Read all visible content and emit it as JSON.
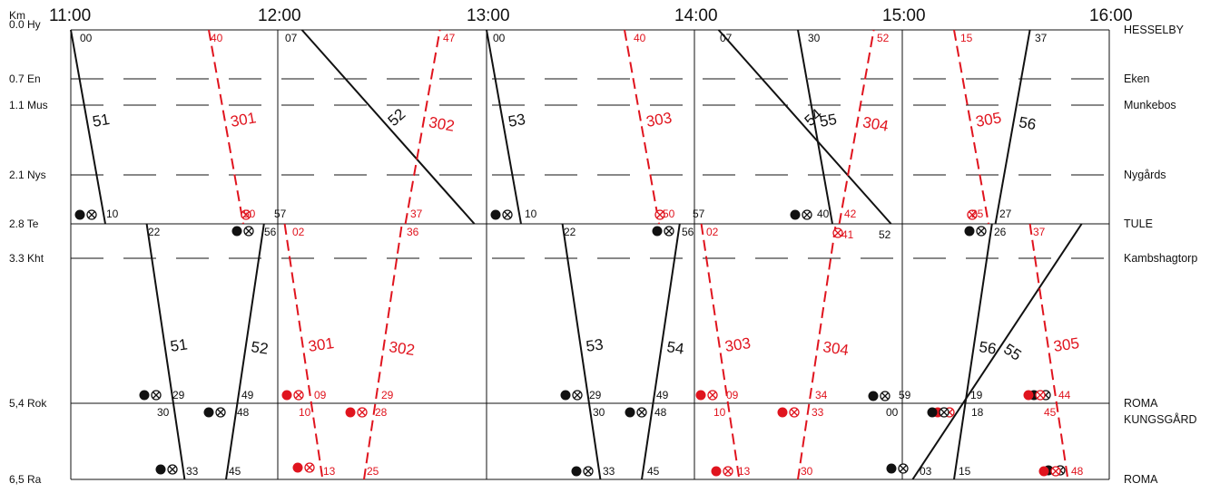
{
  "diagram": {
    "km_unit": "Km",
    "hours": [
      "11:00",
      "12:00",
      "13:00",
      "14:00",
      "15:00",
      "16:00"
    ],
    "stations": [
      {
        "km": "0.0 Hy",
        "name": "HESSELBY",
        "dash": false
      },
      {
        "km": "0.7 En",
        "name": "Eken",
        "dash": true
      },
      {
        "km": "1.1 Mus",
        "name": "Munkebos",
        "dash": true
      },
      {
        "km": "2.1 Nys",
        "name": "Nygårds",
        "dash": true
      },
      {
        "km": "2.8 Te",
        "name": "TULE",
        "dash": false
      },
      {
        "km": "3.3 Kht",
        "name": "Kambshagtorp",
        "dash": true
      },
      {
        "km": "5,4 Rok",
        "name": "ROMA",
        "name2": "KUNGSGÅRD",
        "dash": false
      },
      {
        "km": "6,5 Ra",
        "name": "ROMA",
        "dash": false
      }
    ],
    "colors": {
      "freight": "#111111",
      "passenger": "#e0141e"
    },
    "trains": [
      {
        "n": "51",
        "c": "k",
        "s": [
          [
            0,
            0.0,
            10,
            2.8
          ],
          [
            0,
            22,
            0,
            33,
            6.5
          ]
        ]
      },
      {
        "n": "52",
        "c": "k",
        "s": [
          [
            0,
            45,
            0,
            56,
            2.8
          ],
          [
            1,
            57,
            1,
            7,
            0.0
          ]
        ]
      },
      {
        "n": "53",
        "c": "k",
        "s": [
          [
            2,
            0,
            2,
            10,
            2.8
          ],
          [
            2,
            22,
            2,
            33,
            6.5
          ]
        ]
      },
      {
        "n": "54",
        "c": "k",
        "s": [
          [
            2,
            45,
            2,
            56,
            2.8
          ],
          [
            3,
            57,
            3,
            7,
            0.0
          ]
        ]
      },
      {
        "n": "55",
        "c": "k",
        "s": [
          [
            3,
            30,
            3,
            40,
            2.8
          ],
          [
            4,
            52,
            4,
            3,
            6.5
          ]
        ]
      },
      {
        "n": "56",
        "c": "k",
        "s": [
          [
            4,
            15,
            4,
            26,
            2.8
          ],
          [
            4,
            27,
            4,
            37,
            0.0
          ]
        ]
      },
      {
        "n": "301",
        "c": "r",
        "s": [
          [
            0,
            40,
            0,
            50,
            2.8
          ],
          [
            1,
            2,
            1,
            13,
            6.5
          ]
        ]
      },
      {
        "n": "302",
        "c": "r",
        "s": [
          [
            1,
            25,
            1,
            36,
            2.8
          ],
          [
            1,
            37,
            1,
            47,
            0.0
          ]
        ]
      },
      {
        "n": "303",
        "c": "r",
        "s": [
          [
            2,
            40,
            2,
            50,
            2.8
          ],
          [
            3,
            2,
            3,
            13,
            6.5
          ]
        ]
      },
      {
        "n": "304",
        "c": "r",
        "s": [
          [
            3,
            30,
            3,
            41,
            2.8
          ],
          [
            3,
            42,
            3,
            52,
            0.0
          ]
        ]
      },
      {
        "n": "305",
        "c": "r",
        "s": [
          [
            4,
            15,
            4,
            25,
            2.8
          ],
          [
            4,
            37,
            4,
            48,
            6.5
          ]
        ]
      }
    ],
    "time_labels": [
      {
        "t": "00",
        "c": "k"
      },
      {
        "t": "40",
        "c": "r"
      },
      {
        "t": "07",
        "c": "k"
      },
      {
        "t": "47",
        "c": "r"
      },
      {
        "t": "00",
        "c": "k"
      },
      {
        "t": "40",
        "c": "r"
      },
      {
        "t": "07",
        "c": "k"
      },
      {
        "t": "30",
        "c": "k"
      },
      {
        "t": "52",
        "c": "r"
      },
      {
        "t": "15",
        "c": "r"
      },
      {
        "t": "37",
        "c": "k"
      },
      {
        "t": "10",
        "c": "k"
      },
      {
        "t": "50",
        "c": "r"
      },
      {
        "t": "57",
        "c": "k"
      },
      {
        "t": "37",
        "c": "r"
      },
      {
        "t": "10",
        "c": "k"
      },
      {
        "t": "50",
        "c": "r"
      },
      {
        "t": "57",
        "c": "k"
      },
      {
        "t": "40",
        "c": "k"
      },
      {
        "t": "42",
        "c": "r"
      },
      {
        "t": "25",
        "c": "r"
      },
      {
        "t": "27",
        "c": "k"
      },
      {
        "t": "22",
        "c": "k"
      },
      {
        "t": "56",
        "c": "k"
      },
      {
        "t": "02",
        "c": "r"
      },
      {
        "t": "36",
        "c": "r"
      },
      {
        "t": "22",
        "c": "k"
      },
      {
        "t": "56",
        "c": "k"
      },
      {
        "t": "02",
        "c": "r"
      },
      {
        "t": "41",
        "c": "r"
      },
      {
        "t": "52",
        "c": "k"
      },
      {
        "t": "26",
        "c": "k"
      },
      {
        "t": "37",
        "c": "r"
      },
      {
        "t": "29",
        "c": "k"
      },
      {
        "t": "49",
        "c": "k"
      },
      {
        "t": "09",
        "c": "r"
      },
      {
        "t": "29",
        "c": "r"
      },
      {
        "t": "29",
        "c": "k"
      },
      {
        "t": "49",
        "c": "k"
      },
      {
        "t": "09",
        "c": "r"
      },
      {
        "t": "34",
        "c": "r"
      },
      {
        "t": "59",
        "c": "k"
      },
      {
        "t": "19",
        "c": "k"
      },
      {
        "t": "44",
        "c": "r"
      },
      {
        "t": "30",
        "c": "k"
      },
      {
        "t": "48",
        "c": "k"
      },
      {
        "t": "10",
        "c": "r"
      },
      {
        "t": "28",
        "c": "r"
      },
      {
        "t": "30",
        "c": "k"
      },
      {
        "t": "48",
        "c": "k"
      },
      {
        "t": "10",
        "c": "r"
      },
      {
        "t": "33",
        "c": "r"
      },
      {
        "t": "00",
        "c": "k"
      },
      {
        "t": "18",
        "c": "k"
      },
      {
        "t": "45",
        "c": "r"
      },
      {
        "t": "33",
        "c": "k"
      },
      {
        "t": "45",
        "c": "k"
      },
      {
        "t": "13",
        "c": "r"
      },
      {
        "t": "25",
        "c": "r"
      },
      {
        "t": "33",
        "c": "k"
      },
      {
        "t": "45",
        "c": "k"
      },
      {
        "t": "13",
        "c": "r"
      },
      {
        "t": "30",
        "c": "r"
      },
      {
        "t": "03",
        "c": "k"
      },
      {
        "t": "15",
        "c": "k"
      },
      {
        "t": "48",
        "c": "r"
      }
    ],
    "stop_markers": [
      {
        "c": "k",
        "dot": true
      },
      {
        "c": "r",
        "dot": false
      },
      {
        "c": "k",
        "dot": true
      },
      {
        "c": "r",
        "dot": false
      },
      {
        "c": "k",
        "dot": true
      },
      {
        "c": "r",
        "dot": false
      },
      {
        "c": "k",
        "dot": true
      },
      {
        "c": "k",
        "dot": true
      },
      {
        "c": "r",
        "dot": false
      },
      {
        "c": "k",
        "dot": true
      },
      {
        "c": "k",
        "dot": true
      },
      {
        "c": "k",
        "dot": true
      },
      {
        "c": "r",
        "dot": true
      },
      {
        "c": "r",
        "dot": true
      },
      {
        "c": "k",
        "dot": true
      },
      {
        "c": "r",
        "dot": true
      },
      {
        "c": "r",
        "dot": true
      },
      {
        "c": "k",
        "dot": true
      },
      {
        "c": "k",
        "dot": true
      },
      {
        "c": "r",
        "dot": true
      },
      {
        "c": "k",
        "dot": true
      },
      {
        "c": "r",
        "dot": true
      },
      {
        "c": "k",
        "dot": true
      },
      {
        "c": "k",
        "dot": true
      },
      {
        "c": "r",
        "dot": true
      },
      {
        "c": "k",
        "dot": true
      },
      {
        "c": "k",
        "dot": true
      },
      {
        "c": "r",
        "dot": true
      },
      {
        "c": "k",
        "dot": true
      },
      {
        "c": "r",
        "dot": true
      }
    ]
  }
}
